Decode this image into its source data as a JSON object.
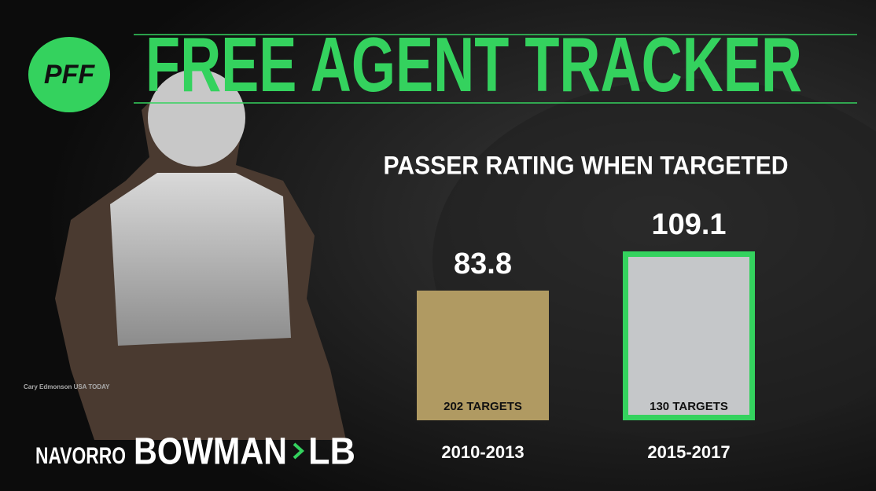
{
  "header": {
    "logo": "PFF",
    "title": "FREE AGENT TRACKER"
  },
  "player": {
    "first_name": "NAVORRO",
    "last_name": "BOWMAN",
    "position": "LB"
  },
  "credit": "Cary Edmonson USA TODAY",
  "chart_data": {
    "type": "bar",
    "title": "PASSER RATING WHEN TARGETED",
    "categories": [
      "2010-2013",
      "2015-2017"
    ],
    "values": [
      83.8,
      109.1
    ],
    "bar_labels": [
      "202 TARGETS",
      "130 TARGETS"
    ],
    "colors": [
      "#b09a62",
      "#c5c7c9"
    ],
    "outlines": [
      null,
      "#34d25e"
    ]
  }
}
